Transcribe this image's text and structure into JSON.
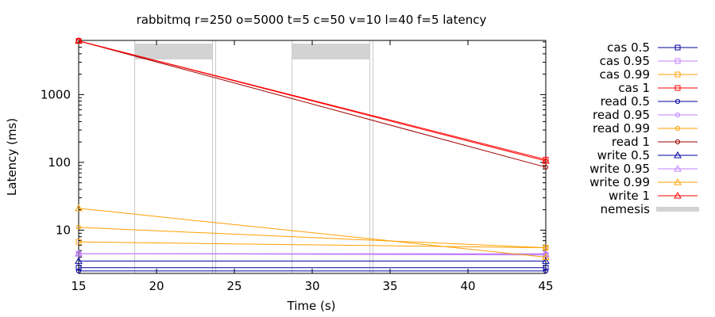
{
  "chart_data": {
    "type": "line",
    "title": "rabbitmq r=250 o=5000 t=5 c=50 v=10 l=40 f=5 latency",
    "xlabel": "Time (s)",
    "ylabel": "Latency (ms)",
    "xlim": [
      15,
      45
    ],
    "ylim": [
      2.3,
      6300
    ],
    "yscale": "log",
    "grid": false,
    "legend_position": "right",
    "xticks": [
      "15",
      "20",
      "25",
      "30",
      "35",
      "40",
      "45"
    ],
    "yticks": [
      "10",
      "100",
      "1000"
    ],
    "nemesis": {
      "name": "nemesis",
      "color": "#d3d3d3",
      "intervals": [
        [
          18.6,
          23.6
        ],
        [
          28.7,
          33.7
        ]
      ],
      "marker_lines": [
        18.6,
        23.6,
        23.8,
        28.7,
        33.7,
        33.9
      ]
    },
    "series": [
      {
        "name": "cas 0.5",
        "color": "#0000a0",
        "marker": "square",
        "x": [
          15,
          45
        ],
        "y": [
          2.8,
          2.8
        ]
      },
      {
        "name": "cas 0.95",
        "color": "#c080ff",
        "marker": "square",
        "x": [
          15,
          45
        ],
        "y": [
          4.5,
          4.3
        ]
      },
      {
        "name": "cas 0.99",
        "color": "#ffa000",
        "marker": "square",
        "x": [
          15,
          45
        ],
        "y": [
          6.7,
          5.5
        ]
      },
      {
        "name": "cas 1",
        "color": "#ff0000",
        "marker": "square",
        "x": [
          15,
          45
        ],
        "y": [
          6200,
          110
        ]
      },
      {
        "name": "read 0.5",
        "color": "#0000a0",
        "marker": "circle",
        "x": [
          15,
          45
        ],
        "y": [
          2.5,
          2.5
        ]
      },
      {
        "name": "read 0.95",
        "color": "#c080ff",
        "marker": "circle",
        "x": [
          15,
          45
        ],
        "y": [
          4.5,
          4.5
        ]
      },
      {
        "name": "read 0.99",
        "color": "#ffa000",
        "marker": "circle",
        "x": [
          15,
          45
        ],
        "y": [
          11,
          5.5
        ]
      },
      {
        "name": "read 1",
        "color": "#a00000",
        "marker": "circle",
        "x": [
          15,
          45
        ],
        "y": [
          6200,
          85
        ]
      },
      {
        "name": "write 0.5",
        "color": "#0000a0",
        "marker": "triangle",
        "x": [
          15,
          45
        ],
        "y": [
          3.5,
          3.5
        ]
      },
      {
        "name": "write 0.95",
        "color": "#c080ff",
        "marker": "triangle",
        "x": [
          15,
          45
        ],
        "y": [
          4.5,
          4.4
        ]
      },
      {
        "name": "write 0.99",
        "color": "#ffa000",
        "marker": "triangle",
        "x": [
          15,
          45
        ],
        "y": [
          21,
          4.0
        ]
      },
      {
        "name": "write 1",
        "color": "#ff0000",
        "marker": "triangle",
        "x": [
          15,
          45
        ],
        "y": [
          6200,
          105
        ]
      }
    ]
  }
}
